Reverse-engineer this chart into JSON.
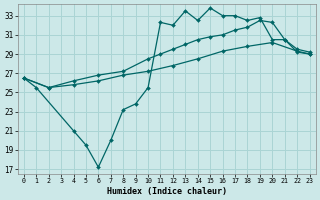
{
  "xlabel": "Humidex (Indice chaleur)",
  "bg_color": "#cce8e8",
  "grid_color": "#aad4d4",
  "line_color": "#006666",
  "xlim": [
    -0.5,
    23.5
  ],
  "ylim": [
    16.5,
    34.2
  ],
  "xticks": [
    0,
    1,
    2,
    3,
    4,
    5,
    6,
    7,
    8,
    9,
    10,
    11,
    12,
    13,
    14,
    15,
    16,
    17,
    18,
    19,
    20,
    21,
    22,
    23
  ],
  "yticks": [
    17,
    19,
    21,
    23,
    25,
    27,
    29,
    31,
    33
  ],
  "line1_x": [
    0,
    1,
    4,
    5,
    6,
    7,
    8,
    9,
    10,
    11,
    12,
    13,
    14,
    15,
    16,
    17,
    18,
    19,
    20,
    21,
    22,
    23
  ],
  "line1_y": [
    26.5,
    25.5,
    21.0,
    19.5,
    17.2,
    20.0,
    23.2,
    23.8,
    25.5,
    32.3,
    32.0,
    33.5,
    32.5,
    33.8,
    33.0,
    33.0,
    32.5,
    32.8,
    30.5,
    30.5,
    29.2,
    29.0
  ],
  "line2_x": [
    0,
    2,
    4,
    6,
    8,
    10,
    11,
    12,
    13,
    14,
    15,
    16,
    17,
    18,
    19,
    20,
    21,
    22,
    23
  ],
  "line2_y": [
    26.5,
    25.5,
    26.2,
    26.8,
    27.2,
    28.5,
    29.0,
    29.5,
    30.0,
    30.5,
    30.8,
    31.0,
    31.5,
    31.8,
    32.5,
    32.3,
    30.5,
    29.5,
    29.2
  ],
  "line3_x": [
    0,
    2,
    4,
    6,
    8,
    10,
    12,
    14,
    16,
    18,
    20,
    22,
    23
  ],
  "line3_y": [
    26.5,
    25.5,
    25.8,
    26.2,
    26.8,
    27.2,
    27.8,
    28.5,
    29.3,
    29.8,
    30.2,
    29.3,
    29.0
  ],
  "marker_line1_x": [
    0,
    1,
    4,
    5,
    6,
    7,
    8,
    9,
    10,
    11,
    12,
    13,
    14,
    15,
    16,
    17,
    18,
    19,
    20,
    21,
    22,
    23
  ],
  "marker_line1_y": [
    26.5,
    25.5,
    21.0,
    19.5,
    17.2,
    20.0,
    23.2,
    23.8,
    25.5,
    32.3,
    32.0,
    33.5,
    32.5,
    33.8,
    33.0,
    33.0,
    32.5,
    32.8,
    30.5,
    30.5,
    29.2,
    29.0
  ],
  "lw": 0.9,
  "ms": 2.0
}
